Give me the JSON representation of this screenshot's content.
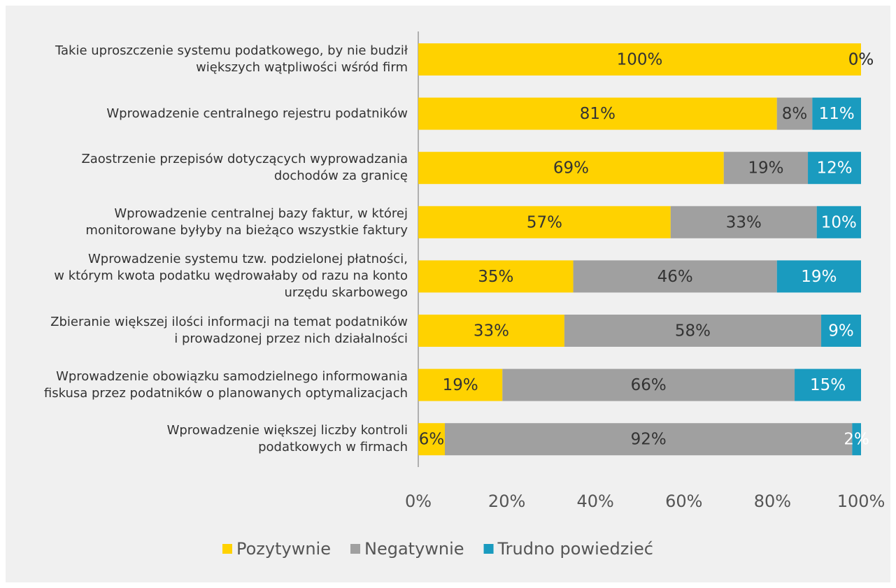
{
  "chart_data": {
    "type": "stacked_barh",
    "categories": [
      "Takie uproszczenie systemu podatkowego, by nie budził\nwiększych wątpliwości wśród firm",
      "Wprowadzenie centralnego rejestru podatników",
      "Zaostrzenie przepisów dotyczących wyprowadzania\ndochodów za granicę",
      "Wprowadzenie centralnej bazy faktur, w której\nmonitorowane byłyby na bieżąco wszystkie faktury",
      "Wprowadzenie systemu tzw. podzielonej płatności,\nw którym kwota podatku wędrowałaby od razu na konto\nurzędu skarbowego",
      "Zbieranie większej ilości informacji na temat podatników\ni prowadzonej przez nich działalności",
      "Wprowadzenie obowiązku samodzielnego informowania\nfiskusa przez podatników o planowanych optymalizacjach",
      "Wprowadzenie większej liczby kontroli\npodatkowych w firmach"
    ],
    "series": [
      {
        "name": "Pozytywnie",
        "color": "#ffd200",
        "values": [
          100,
          81,
          69,
          57,
          35,
          33,
          19,
          6
        ],
        "value_labels": [
          "100%",
          "81%",
          "69%",
          "57%",
          "35%",
          "33%",
          "19%",
          "6%"
        ]
      },
      {
        "name": "Negatywnie",
        "color": "#a0a0a0",
        "values": [
          0,
          8,
          19,
          33,
          46,
          58,
          66,
          92
        ],
        "value_labels": [
          "0%",
          "8%",
          "19%",
          "33%",
          "46%",
          "58%",
          "66%",
          "92%"
        ]
      },
      {
        "name": "Trudno powiedzieć",
        "color": "#1a9bbf",
        "values": [
          0,
          11,
          12,
          10,
          19,
          9,
          15,
          2
        ],
        "value_labels": [
          "0%",
          "11%",
          "12%",
          "10%",
          "19%",
          "9%",
          "15%",
          "2%"
        ]
      }
    ],
    "xlim": [
      0,
      100
    ],
    "xticks": [
      {
        "value": 0,
        "label": "0%"
      },
      {
        "value": 20,
        "label": "20%"
      },
      {
        "value": 40,
        "label": "40%"
      },
      {
        "value": 60,
        "label": "60%"
      },
      {
        "value": 80,
        "label": "80%"
      },
      {
        "value": 100,
        "label": "100%"
      }
    ]
  }
}
